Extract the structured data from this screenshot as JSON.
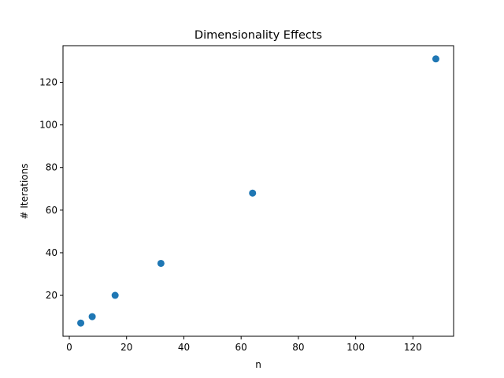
{
  "chart_data": {
    "type": "scatter",
    "title": "Dimensionality Effects",
    "xlabel": "n",
    "ylabel": "# Iterations",
    "xlim": [
      -2.2,
      134.2
    ],
    "ylim": [
      0.8,
      137.2
    ],
    "xticks": [
      0,
      20,
      40,
      60,
      80,
      100,
      120
    ],
    "yticks": [
      20,
      40,
      60,
      80,
      100,
      120
    ],
    "grid": false,
    "marker_color": "#1f77b4",
    "series": [
      {
        "x": [
          4,
          8,
          16,
          32,
          64,
          128
        ],
        "y": [
          7,
          10,
          20,
          35,
          68,
          131
        ]
      }
    ]
  }
}
